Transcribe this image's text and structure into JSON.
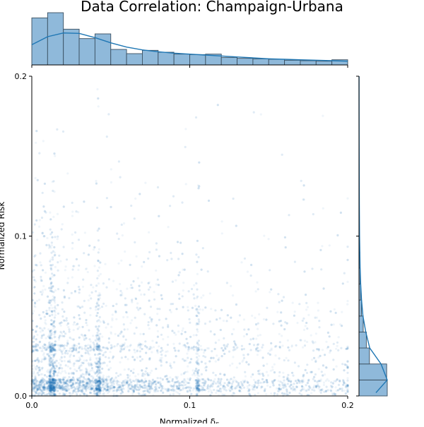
{
  "chart_data": {
    "type": "scatter",
    "title": "Data Correlation: Champaign-Urbana",
    "xlabel": "Normalized δ",
    "xlabel_subscript": "F",
    "ylabel": "Normalized Risk",
    "xlim": [
      0,
      0.2
    ],
    "ylim": [
      0,
      0.2
    ],
    "x_ticks": [
      {
        "value": 0,
        "label": "0.0"
      },
      {
        "value": 0.1,
        "label": "0.1"
      },
      {
        "value": 0.2,
        "label": "0.2"
      }
    ],
    "y_ticks": [
      {
        "value": 0,
        "label": "0.0"
      },
      {
        "value": 0.1,
        "label": "0.1"
      },
      {
        "value": 0.2,
        "label": "0.2"
      }
    ],
    "grid": false,
    "legend": "none",
    "point_color": "#1f77b4",
    "hist_fill": "#8fb9da",
    "hist_edge": "#3a4f60",
    "kde_color": "#1f77b4",
    "top_marginal": {
      "type": "histogram",
      "bin_edges": [
        0,
        0.01,
        0.02,
        0.03,
        0.04,
        0.05,
        0.06,
        0.07,
        0.08,
        0.09,
        0.1,
        0.11,
        0.12,
        0.13,
        0.14,
        0.15,
        0.16,
        0.17,
        0.18,
        0.19,
        0.2
      ],
      "relative_counts": [
        1.0,
        1.11,
        0.76,
        0.56,
        0.66,
        0.33,
        0.24,
        0.31,
        0.27,
        0.23,
        0.22,
        0.23,
        0.16,
        0.14,
        0.13,
        0.12,
        0.1,
        0.09,
        0.08,
        0.11
      ],
      "kde_x": [
        0,
        0.01,
        0.02,
        0.03,
        0.04,
        0.05,
        0.06,
        0.07,
        0.08,
        0.09,
        0.1,
        0.11,
        0.12,
        0.13,
        0.14,
        0.15,
        0.16,
        0.17,
        0.18,
        0.19,
        0.2
      ],
      "kde_y": [
        0.43,
        0.6,
        0.68,
        0.67,
        0.58,
        0.47,
        0.38,
        0.32,
        0.28,
        0.25,
        0.23,
        0.21,
        0.19,
        0.17,
        0.15,
        0.13,
        0.12,
        0.11,
        0.1,
        0.09,
        0.08
      ]
    },
    "right_marginal": {
      "type": "histogram",
      "bin_edges": [
        0,
        0.01,
        0.02,
        0.03,
        0.04,
        0.05,
        0.06,
        0.07,
        0.08,
        0.09,
        0.1
      ],
      "relative_counts": [
        1.0,
        0.98,
        0.37,
        0.26,
        0.15,
        0.09,
        0.06,
        0.04,
        0.03,
        0.02
      ],
      "kde_y": [
        0.002,
        0.01,
        0.02,
        0.03,
        0.04,
        0.05,
        0.06,
        0.07,
        0.08,
        0.09,
        0.1,
        0.12,
        0.14,
        0.16,
        0.18,
        0.2
      ],
      "kde_x": [
        0.6,
        1.0,
        0.78,
        0.38,
        0.24,
        0.14,
        0.09,
        0.06,
        0.04,
        0.03,
        0.02,
        0.012,
        0.008,
        0.005,
        0.003,
        0.002
      ]
    },
    "point_density": {
      "description_free": true,
      "total_points": 6500,
      "x_clusters": [
        0.013,
        0.015,
        0.042,
        0.105
      ],
      "y_clusters": [
        0.005,
        0.009,
        0.03,
        0.04
      ],
      "point_alpha": 0.07
    }
  }
}
